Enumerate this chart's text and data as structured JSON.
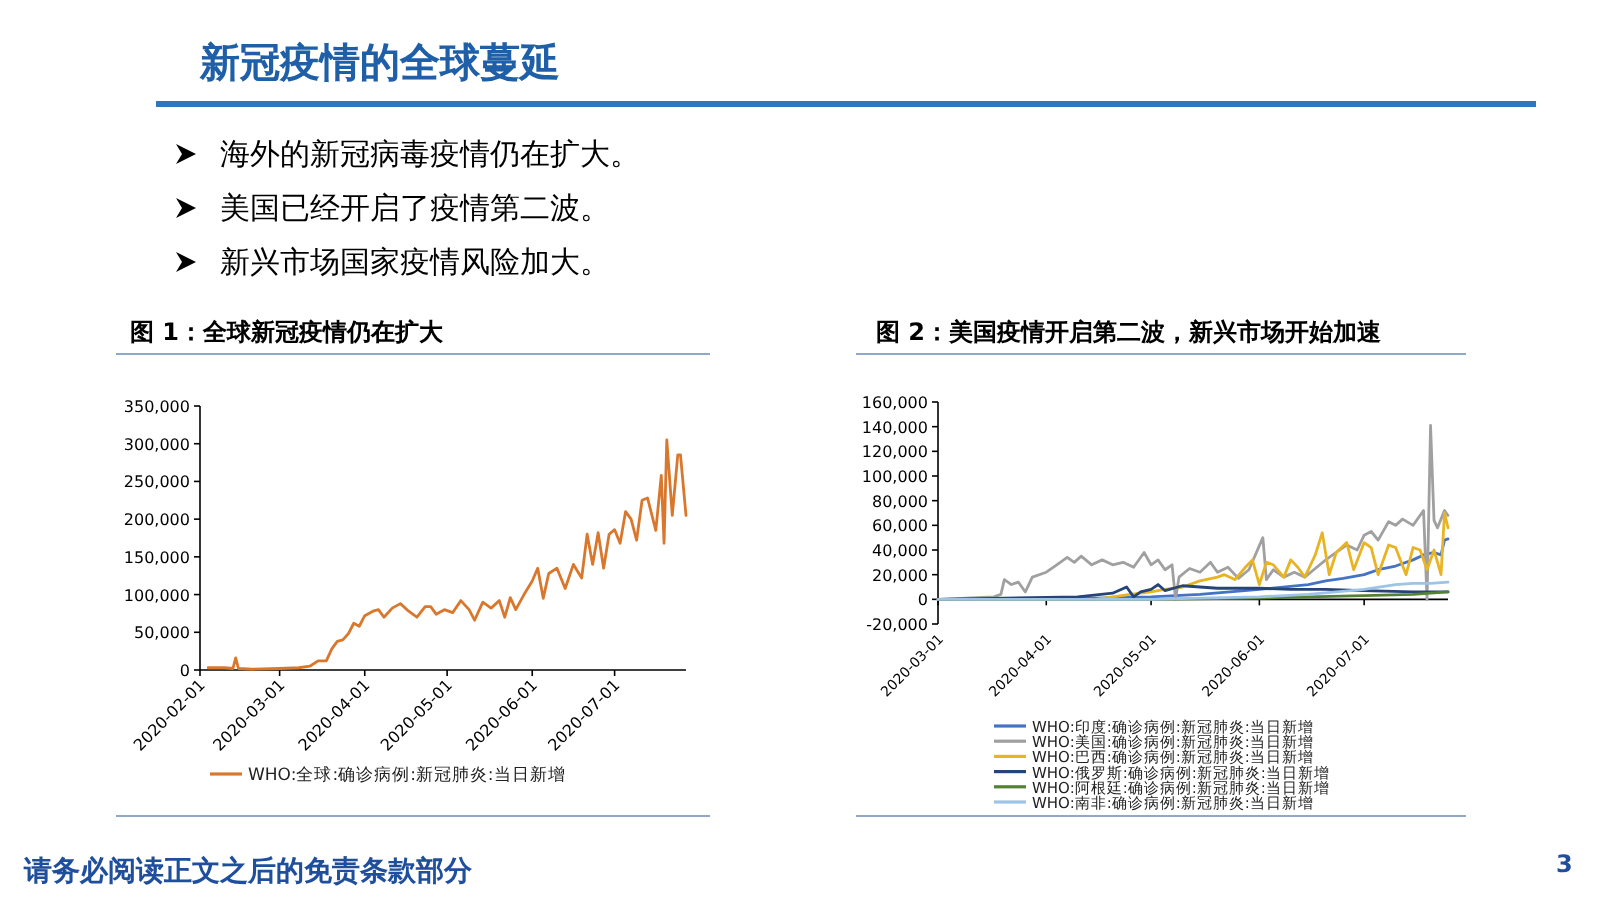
{
  "chart_data": [
    {
      "type": "other",
      "title": "新冠疫情的全球蔓延",
      "annotations": [
        "海外的新冠病毒疫情仍在扩大。",
        "美国已经开启了疫情第二波。",
        "新兴市场国家疫情风险加大。",
        "请务必阅读正文之后的免责条款部分",
        "3"
      ]
    },
    {
      "type": "line",
      "title": "图 1：全球新冠疫情仍在扩大",
      "legend": "bottom",
      "marker": "none",
      "line_style": "solid",
      "xlim": [
        "2020-02-01",
        "2020-07-27"
      ],
      "xticks": [
        {
          "value": "2020-02-01",
          "label": "2020-02-01"
        },
        {
          "value": "2020-03-01",
          "label": "2020-03-01"
        },
        {
          "value": "2020-04-01",
          "label": "2020-04-01"
        },
        {
          "value": "2020-05-01",
          "label": "2020-05-01"
        },
        {
          "value": "2020-06-01",
          "label": "2020-06-01"
        },
        {
          "value": "2020-07-01",
          "label": "2020-07-01"
        }
      ],
      "ylim": [
        0,
        350000
      ],
      "yticks": [
        0,
        {
          "value": 50000,
          "label": "50,000"
        },
        {
          "value": 100000,
          "label": "100,000"
        },
        {
          "value": 150000,
          "label": "150,000"
        },
        {
          "value": 200000,
          "label": "200,000"
        },
        {
          "value": 250000,
          "label": "250,000"
        },
        {
          "value": 300000,
          "label": "300,000"
        },
        {
          "value": 350000,
          "label": "350,000"
        }
      ],
      "series": [
        {
          "name": "WHO:全球:确诊病例:新冠肺炎:当日新增",
          "color": "#d9782d",
          "x": [
            "2020-02-04",
            "2020-02-10",
            "2020-02-13",
            "2020-02-14",
            "2020-02-15",
            "2020-02-20",
            "2020-03-01",
            "2020-03-08",
            "2020-03-12",
            "2020-03-15",
            "2020-03-18",
            "2020-03-20",
            "2020-03-22",
            "2020-03-24",
            "2020-03-26",
            "2020-03-28",
            "2020-03-30",
            "2020-04-01",
            "2020-04-04",
            "2020-04-06",
            "2020-04-08",
            "2020-04-11",
            "2020-04-14",
            "2020-04-17",
            "2020-04-20",
            "2020-04-23",
            "2020-04-25",
            "2020-04-27",
            "2020-04-30",
            "2020-05-03",
            "2020-05-06",
            "2020-05-09",
            "2020-05-11",
            "2020-05-14",
            "2020-05-17",
            "2020-05-20",
            "2020-05-22",
            "2020-05-24",
            "2020-05-26",
            "2020-05-29",
            "2020-06-01",
            "2020-06-03",
            "2020-06-05",
            "2020-06-07",
            "2020-06-10",
            "2020-06-13",
            "2020-06-16",
            "2020-06-19",
            "2020-06-21",
            "2020-06-23",
            "2020-06-25",
            "2020-06-27",
            "2020-06-29",
            "2020-07-01",
            "2020-07-03",
            "2020-07-05",
            "2020-07-07",
            "2020-07-09",
            "2020-07-11",
            "2020-07-13",
            "2020-07-16",
            "2020-07-18",
            "2020-07-19",
            "2020-07-20",
            "2020-07-22",
            "2020-07-24",
            "2020-07-25",
            "2020-07-27"
          ],
          "values": [
            3000,
            3000,
            2000,
            16000,
            2000,
            1000,
            2000,
            3000,
            5000,
            12000,
            12000,
            28000,
            38000,
            40000,
            48000,
            62000,
            58000,
            72000,
            78000,
            80000,
            70000,
            82000,
            88000,
            78000,
            70000,
            84000,
            84000,
            74000,
            80000,
            76000,
            92000,
            80000,
            66000,
            90000,
            82000,
            92000,
            70000,
            96000,
            80000,
            100000,
            118000,
            135000,
            95000,
            128000,
            135000,
            108000,
            140000,
            122000,
            180000,
            140000,
            182000,
            135000,
            180000,
            186000,
            168000,
            210000,
            200000,
            172000,
            225000,
            228000,
            185000,
            258000,
            168000,
            305000,
            205000,
            285000,
            285000,
            205000
          ]
        }
      ]
    },
    {
      "type": "line",
      "title": "图 2：美国疫情开启第二波，新兴市场开始加速",
      "legend": "bottom",
      "marker": "none",
      "line_style": "solid",
      "xlim": [
        "2020-03-01",
        "2020-07-25"
      ],
      "xticks": [
        {
          "value": "2020-03-01",
          "label": "2020-03-01"
        },
        {
          "value": "2020-04-01",
          "label": "2020-04-01"
        },
        {
          "value": "2020-05-01",
          "label": "2020-05-01"
        },
        {
          "value": "2020-06-01",
          "label": "2020-06-01"
        },
        {
          "value": "2020-07-01",
          "label": "2020-07-01"
        }
      ],
      "ylim": [
        -20000,
        160000
      ],
      "yticks": [
        {
          "value": -20000,
          "label": "-20,000"
        },
        0,
        {
          "value": 20000,
          "label": "20,000"
        },
        {
          "value": 40000,
          "label": "40,000"
        },
        {
          "value": 60000,
          "label": "60,000"
        },
        {
          "value": 80000,
          "label": "80,000"
        },
        {
          "value": 100000,
          "label": "100,000"
        },
        {
          "value": 120000,
          "label": "120,000"
        },
        {
          "value": 140000,
          "label": "140,000"
        },
        {
          "value": 160000,
          "label": "160,000"
        }
      ],
      "series": [
        {
          "name": "WHO:印度:确诊病例:新冠肺炎:当日新增",
          "color": "#4472c4",
          "x": [
            "2020-03-01",
            "2020-04-01",
            "2020-04-15",
            "2020-05-01",
            "2020-05-15",
            "2020-06-01",
            "2020-06-15",
            "2020-06-20",
            "2020-06-25",
            "2020-07-01",
            "2020-07-05",
            "2020-07-10",
            "2020-07-15",
            "2020-07-18",
            "2020-07-21",
            "2020-07-23",
            "2020-07-24",
            "2020-07-25"
          ],
          "values": [
            0,
            0,
            1000,
            2000,
            4000,
            8000,
            12000,
            15000,
            17000,
            20000,
            24000,
            27000,
            32000,
            36000,
            38000,
            36000,
            48000,
            49000
          ]
        },
        {
          "name": "WHO:美国:确诊病例:新冠肺炎:当日新增",
          "color": "#a0a0a0",
          "x": [
            "2020-03-01",
            "2020-03-17",
            "2020-03-19",
            "2020-03-20",
            "2020-03-22",
            "2020-03-24",
            "2020-03-26",
            "2020-03-28",
            "2020-04-01",
            "2020-04-04",
            "2020-04-07",
            "2020-04-09",
            "2020-04-11",
            "2020-04-14",
            "2020-04-17",
            "2020-04-20",
            "2020-04-23",
            "2020-04-26",
            "2020-04-29",
            "2020-05-01",
            "2020-05-03",
            "2020-05-05",
            "2020-05-07",
            "2020-05-08",
            "2020-05-09",
            "2020-05-12",
            "2020-05-15",
            "2020-05-18",
            "2020-05-20",
            "2020-05-23",
            "2020-05-26",
            "2020-05-29",
            "2020-06-02",
            "2020-06-03",
            "2020-06-05",
            "2020-06-08",
            "2020-06-11",
            "2020-06-14",
            "2020-06-17",
            "2020-06-20",
            "2020-06-23",
            "2020-06-26",
            "2020-06-29",
            "2020-07-01",
            "2020-07-03",
            "2020-07-05",
            "2020-07-08",
            "2020-07-10",
            "2020-07-12",
            "2020-07-15",
            "2020-07-18",
            "2020-07-19",
            "2020-07-20",
            "2020-07-21",
            "2020-07-22",
            "2020-07-24",
            "2020-07-25"
          ],
          "values": [
            0,
            2000,
            4000,
            16000,
            12000,
            14000,
            6000,
            18000,
            22000,
            28000,
            34000,
            30000,
            35000,
            28000,
            32000,
            28000,
            30000,
            26000,
            38000,
            28000,
            32000,
            24000,
            28000,
            0,
            18000,
            25000,
            22000,
            30000,
            22000,
            26000,
            17000,
            24000,
            50000,
            16000,
            24000,
            18000,
            22000,
            18000,
            25000,
            32000,
            38000,
            44000,
            40000,
            52000,
            55000,
            48000,
            63000,
            60000,
            65000,
            60000,
            72000,
            0,
            141000,
            64000,
            58000,
            72000,
            68000
          ]
        },
        {
          "name": "WHO:巴西:确诊病例:新冠肺炎:当日新增",
          "color": "#e8b424",
          "x": [
            "2020-03-01",
            "2020-04-15",
            "2020-04-25",
            "2020-05-01",
            "2020-05-05",
            "2020-05-10",
            "2020-05-15",
            "2020-05-20",
            "2020-05-22",
            "2020-05-25",
            "2020-05-28",
            "2020-05-30",
            "2020-06-01",
            "2020-06-03",
            "2020-06-05",
            "2020-06-08",
            "2020-06-10",
            "2020-06-12",
            "2020-06-14",
            "2020-06-17",
            "2020-06-19",
            "2020-06-21",
            "2020-06-23",
            "2020-06-26",
            "2020-06-28",
            "2020-07-01",
            "2020-07-03",
            "2020-07-05",
            "2020-07-08",
            "2020-07-10",
            "2020-07-13",
            "2020-07-15",
            "2020-07-17",
            "2020-07-19",
            "2020-07-21",
            "2020-07-23",
            "2020-07-24",
            "2020-07-25"
          ],
          "values": [
            0,
            0,
            4000,
            6000,
            8000,
            10000,
            15000,
            18000,
            20000,
            16000,
            26000,
            32000,
            12000,
            30000,
            28000,
            18000,
            32000,
            26000,
            18000,
            36000,
            54000,
            20000,
            38000,
            46000,
            24000,
            46000,
            42000,
            20000,
            44000,
            42000,
            20000,
            42000,
            40000,
            24000,
            40000,
            20000,
            70000,
            58000
          ]
        },
        {
          "name": "WHO:俄罗斯:确诊病例:新冠肺炎:当日新增",
          "color": "#264478",
          "x": [
            "2020-03-01",
            "2020-04-10",
            "2020-04-20",
            "2020-04-24",
            "2020-04-26",
            "2020-04-28",
            "2020-05-01",
            "2020-05-03",
            "2020-05-05",
            "2020-05-10",
            "2020-05-15",
            "2020-05-20",
            "2020-06-01",
            "2020-06-10",
            "2020-06-20",
            "2020-07-01",
            "2020-07-15",
            "2020-07-25"
          ],
          "values": [
            0,
            2000,
            5000,
            10000,
            2000,
            6000,
            8000,
            12000,
            7000,
            11000,
            10000,
            9000,
            9000,
            8000,
            8000,
            7000,
            6000,
            6000
          ]
        },
        {
          "name": "WHO:阿根廷:确诊病例:新冠肺炎:当日新增",
          "color": "#548235",
          "x": [
            "2020-03-01",
            "2020-05-01",
            "2020-06-01",
            "2020-06-15",
            "2020-07-01",
            "2020-07-15",
            "2020-07-25"
          ],
          "values": [
            0,
            0,
            1000,
            2000,
            3000,
            4000,
            6000
          ]
        },
        {
          "name": "WHO:南非:确诊病例:新冠肺炎:当日新增",
          "color": "#9dc3e6",
          "x": [
            "2020-03-01",
            "2020-05-01",
            "2020-05-15",
            "2020-06-01",
            "2020-06-15",
            "2020-07-01",
            "2020-07-10",
            "2020-07-15",
            "2020-07-20",
            "2020-07-25"
          ],
          "values": [
            0,
            0,
            1000,
            2000,
            4000,
            8000,
            12000,
            13000,
            13000,
            14000
          ]
        }
      ]
    }
  ]
}
